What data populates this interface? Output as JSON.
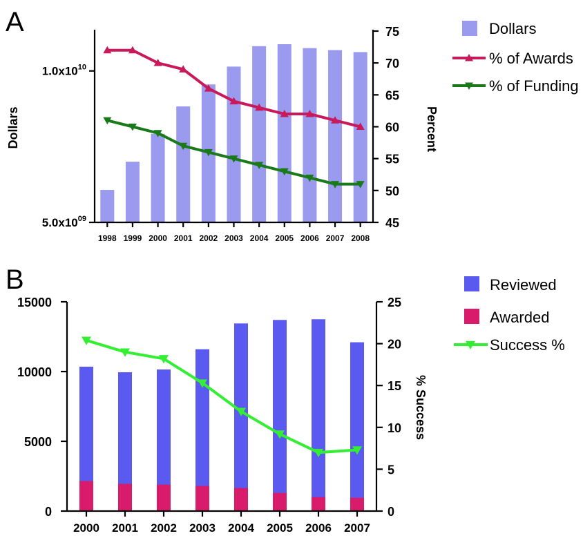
{
  "chart_data": [
    {
      "type": "bar",
      "panel_label": "A",
      "categories": [
        "1998",
        "1999",
        "2000",
        "2001",
        "2002",
        "2003",
        "2004",
        "2005",
        "2006",
        "2007",
        "2008"
      ],
      "ylabel": "Dollars",
      "ylabel_right": "Percent",
      "y_scale": "log",
      "ylim": [
        5000000000,
        12000000000
      ],
      "y_ticks": [
        {
          "value": 10000000000,
          "base": "1.0x10",
          "exp": "10"
        },
        {
          "value": 5000000000,
          "base": "5.0x10",
          "exp": "09"
        }
      ],
      "y2lim": [
        45,
        75
      ],
      "y2_ticks": [
        "45",
        "50",
        "55",
        "60",
        "65",
        "70",
        "75"
      ],
      "legend_position": "right",
      "series": [
        {
          "name": "Dollars",
          "axis": "left",
          "kind": "bar",
          "color": "#9a9aee",
          "values": [
            5800000000,
            6600000000,
            7500000000,
            8500000000,
            9400000000,
            10200000000,
            11200000000,
            11300000000,
            11100000000,
            11000000000,
            10900000000
          ]
        },
        {
          "name": "% of Awards",
          "axis": "right",
          "kind": "line",
          "marker": "triangle-up",
          "color": "#c8195a",
          "values": [
            72,
            72,
            70,
            69,
            66,
            64,
            63,
            62,
            62,
            61,
            60
          ]
        },
        {
          "name": "% of Funding",
          "axis": "right",
          "kind": "line",
          "marker": "triangle-down",
          "color": "#1a7a1a",
          "values": [
            61,
            60,
            59,
            57,
            56,
            55,
            54,
            53,
            52,
            51,
            51
          ]
        }
      ]
    },
    {
      "type": "bar",
      "panel_label": "B",
      "categories": [
        "2000",
        "2001",
        "2002",
        "2003",
        "2004",
        "2005",
        "2006",
        "2007"
      ],
      "ylabel": "",
      "ylabel_right": "% Success",
      "ylim": [
        0,
        15000
      ],
      "y_ticks": [
        "0",
        "5000",
        "10000",
        "15000"
      ],
      "y2lim": [
        0,
        25
      ],
      "y2_ticks": [
        "0",
        "5",
        "10",
        "15",
        "20",
        "25"
      ],
      "legend_position": "right",
      "series": [
        {
          "name": "Reviewed",
          "axis": "left",
          "kind": "bar",
          "color": "#5a5af0",
          "values": [
            10350,
            9950,
            10150,
            11600,
            13450,
            13700,
            13750,
            12100
          ]
        },
        {
          "name": "Awarded",
          "axis": "left",
          "kind": "bar",
          "color": "#d81b6a",
          "values": [
            2150,
            1950,
            1900,
            1800,
            1650,
            1300,
            1000,
            950
          ]
        },
        {
          "name": "Success %",
          "axis": "right",
          "kind": "line",
          "marker": "triangle-down",
          "color": "#33ee33",
          "values": [
            20.4,
            19.0,
            18.2,
            15.3,
            11.9,
            9.2,
            7.0,
            7.3
          ]
        }
      ]
    }
  ]
}
